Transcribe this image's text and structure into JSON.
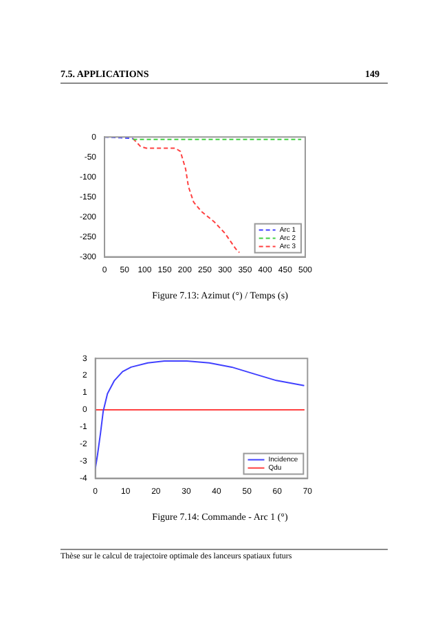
{
  "chart_data": [
    {
      "type": "line",
      "title": "Figure 7.13: Azimut (°) / Temps (s)",
      "xlim": [
        0,
        500
      ],
      "xticks": [
        0,
        50,
        100,
        150,
        200,
        250,
        300,
        350,
        400,
        450,
        500
      ],
      "ylim": [
        -300,
        0
      ],
      "yticks": [
        -300,
        -250,
        -200,
        -150,
        -100,
        -50,
        0
      ],
      "legend": "bottom right",
      "marker": "none",
      "line_style": "dashed",
      "annotations": [
        "7.5.  APPLICATIONS",
        "149"
      ],
      "series": [
        {
          "name": "Arc 1",
          "color": "#4040ff",
          "x": [
            0,
            20,
            40,
            60,
            71
          ],
          "values": [
            0,
            -1,
            -2,
            -3,
            -4
          ]
        },
        {
          "name": "Arc 2",
          "color": "#40d040",
          "x": [
            71,
            150,
            250,
            350,
            490
          ],
          "values": [
            -6,
            -6,
            -6,
            -6,
            -6
          ]
        },
        {
          "name": "Arc 3",
          "color": "#ff4040",
          "x": [
            71,
            90,
            104,
            176,
            189,
            202,
            209,
            222,
            241,
            274,
            300,
            327,
            336
          ],
          "values": [
            -4,
            -24,
            -28,
            -28,
            -36,
            -80,
            -124,
            -163,
            -186,
            -213,
            -241,
            -280,
            -289
          ]
        }
      ]
    },
    {
      "type": "line",
      "title": "Figure 7.14: Commande - Arc 1 (°)",
      "xlim": [
        0,
        70
      ],
      "xticks": [
        0,
        10,
        20,
        30,
        40,
        50,
        60,
        70
      ],
      "ylim": [
        -4,
        3
      ],
      "yticks": [
        -4,
        -3,
        -2,
        -1,
        0,
        1,
        2,
        3
      ],
      "legend": "bottom right",
      "marker": "none",
      "line_style": "solid",
      "annotations": [
        "Thèse sur le calcul de trajectoire optimale des lanceurs spatiaux futurs"
      ],
      "series": [
        {
          "name": "Incidence",
          "color": "#4040ff",
          "x": [
            0,
            0.7,
            1.7,
            2.6,
            4,
            6.3,
            9,
            11.8,
            17.3,
            22.8,
            30.2,
            37.6,
            45,
            52.3,
            59.7,
            68.9
          ],
          "values": [
            -3.43,
            -2.66,
            -1.37,
            -0.08,
            0.94,
            1.71,
            2.23,
            2.49,
            2.74,
            2.85,
            2.85,
            2.74,
            2.49,
            2.1,
            1.71,
            1.41
          ]
        },
        {
          "name": "Qdu",
          "color": "#ff4040",
          "x": [
            0,
            69
          ],
          "values": [
            0,
            0
          ]
        }
      ]
    }
  ]
}
